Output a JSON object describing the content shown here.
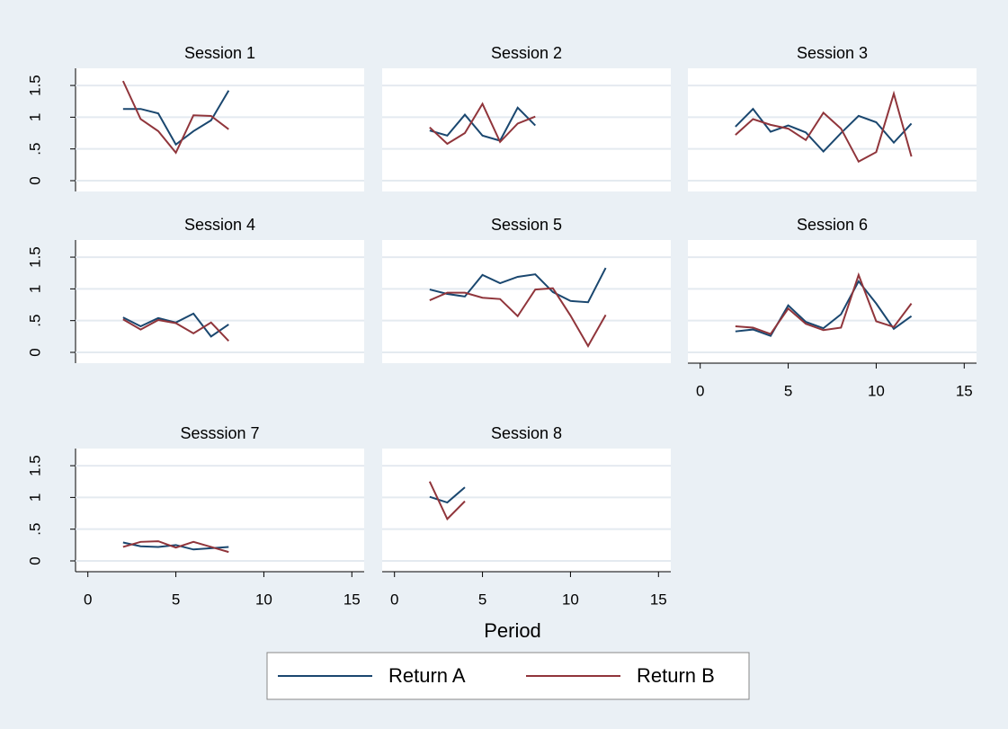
{
  "chart_data": [
    {
      "type": "line",
      "title": "Session 1",
      "x": [
        2,
        3,
        4,
        5,
        6,
        7,
        8
      ],
      "xlim": [
        -0.7,
        15.7
      ],
      "ylim": [
        -0.17,
        1.77
      ],
      "yticks": [
        0,
        {
          "value": 0.5,
          "label": ".5"
        },
        1,
        1.5
      ],
      "grid": true,
      "series": [
        {
          "name": "Return A",
          "color": "#1a476f",
          "values": [
            1.13,
            1.13,
            1.06,
            0.57,
            0.78,
            0.95,
            1.42
          ]
        },
        {
          "name": "Return B",
          "color": "#90353b",
          "values": [
            1.57,
            0.97,
            0.78,
            0.44,
            1.03,
            1.02,
            0.81
          ]
        }
      ]
    },
    {
      "type": "line",
      "title": "Session 2",
      "x": [
        2,
        3,
        4,
        5,
        6,
        7,
        8
      ],
      "xlim": [
        -0.7,
        15.7
      ],
      "ylim": [
        -0.17,
        1.77
      ],
      "grid": true,
      "series": [
        {
          "name": "Return A",
          "color": "#1a476f",
          "values": [
            0.79,
            0.71,
            1.04,
            0.71,
            0.63,
            1.15,
            0.87
          ]
        },
        {
          "name": "Return B",
          "color": "#90353b",
          "values": [
            0.84,
            0.58,
            0.75,
            1.21,
            0.61,
            0.9,
            1.01
          ]
        }
      ]
    },
    {
      "type": "line",
      "title": "Session 3",
      "x": [
        2,
        3,
        4,
        5,
        6,
        7,
        8,
        9,
        10,
        11,
        12
      ],
      "xlim": [
        -0.7,
        15.7
      ],
      "ylim": [
        -0.17,
        1.77
      ],
      "grid": true,
      "series": [
        {
          "name": "Return A",
          "color": "#1a476f",
          "values": [
            0.85,
            1.13,
            0.77,
            0.87,
            0.76,
            0.46,
            0.75,
            1.02,
            0.92,
            0.6,
            0.9
          ]
        },
        {
          "name": "Return B",
          "color": "#90353b",
          "values": [
            0.72,
            0.97,
            0.88,
            0.82,
            0.64,
            1.07,
            0.82,
            0.3,
            0.45,
            1.37,
            0.38
          ]
        }
      ]
    },
    {
      "type": "line",
      "title": "Session 4",
      "x": [
        2,
        3,
        4,
        5,
        6,
        7,
        8
      ],
      "xlim": [
        -0.7,
        15.7
      ],
      "ylim": [
        -0.17,
        1.77
      ],
      "yticks": [
        0,
        {
          "value": 0.5,
          "label": ".5"
        },
        1,
        1.5
      ],
      "grid": true,
      "series": [
        {
          "name": "Return A",
          "color": "#1a476f",
          "values": [
            0.55,
            0.41,
            0.54,
            0.47,
            0.61,
            0.25,
            0.44
          ]
        },
        {
          "name": "Return B",
          "color": "#90353b",
          "values": [
            0.52,
            0.36,
            0.51,
            0.46,
            0.3,
            0.47,
            0.18
          ]
        }
      ]
    },
    {
      "type": "line",
      "title": "Session 5",
      "x": [
        2,
        3,
        4,
        5,
        6,
        7,
        8,
        9,
        10,
        11,
        12
      ],
      "xlim": [
        -0.7,
        15.7
      ],
      "ylim": [
        -0.17,
        1.77
      ],
      "grid": true,
      "series": [
        {
          "name": "Return A",
          "color": "#1a476f",
          "values": [
            0.99,
            0.92,
            0.88,
            1.22,
            1.09,
            1.19,
            1.23,
            0.95,
            0.81,
            0.79,
            1.33
          ]
        },
        {
          "name": "Return B",
          "color": "#90353b",
          "values": [
            0.82,
            0.94,
            0.94,
            0.86,
            0.84,
            0.57,
            0.99,
            1.01,
            0.58,
            0.1,
            0.59
          ]
        }
      ]
    },
    {
      "type": "line",
      "title": "Session 6",
      "x": [
        2,
        3,
        4,
        5,
        6,
        7,
        8,
        9,
        10,
        11,
        12
      ],
      "xlim": [
        -0.7,
        15.7
      ],
      "ylim": [
        -0.17,
        1.77
      ],
      "xticks": [
        0,
        5,
        10,
        15
      ],
      "grid": true,
      "series": [
        {
          "name": "Return A",
          "color": "#1a476f",
          "values": [
            0.33,
            0.36,
            0.26,
            0.74,
            0.48,
            0.38,
            0.6,
            1.12,
            0.77,
            0.37,
            0.57
          ]
        },
        {
          "name": "Return B",
          "color": "#90353b",
          "values": [
            0.41,
            0.39,
            0.29,
            0.69,
            0.45,
            0.35,
            0.39,
            1.22,
            0.49,
            0.4,
            0.77
          ]
        }
      ]
    },
    {
      "type": "line",
      "title": "Sesssion 7",
      "x": [
        2,
        3,
        4,
        5,
        6,
        7,
        8
      ],
      "xlim": [
        -0.7,
        15.7
      ],
      "ylim": [
        -0.17,
        1.77
      ],
      "xticks": [
        0,
        5,
        10,
        15
      ],
      "yticks": [
        0,
        {
          "value": 0.5,
          "label": ".5"
        },
        1,
        1.5
      ],
      "grid": true,
      "series": [
        {
          "name": "Return A",
          "color": "#1a476f",
          "values": [
            0.29,
            0.23,
            0.22,
            0.25,
            0.18,
            0.2,
            0.22
          ]
        },
        {
          "name": "Return B",
          "color": "#90353b",
          "values": [
            0.22,
            0.3,
            0.31,
            0.21,
            0.3,
            0.22,
            0.14
          ]
        }
      ]
    },
    {
      "type": "line",
      "title": "Session 8",
      "x": [
        2,
        3,
        4
      ],
      "xlim": [
        -0.7,
        15.7
      ],
      "ylim": [
        -0.17,
        1.77
      ],
      "xticks": [
        0,
        5,
        10,
        15
      ],
      "grid": true,
      "series": [
        {
          "name": "Return A",
          "color": "#1a476f",
          "values": [
            1.01,
            0.92,
            1.16
          ]
        },
        {
          "name": "Return B",
          "color": "#90353b",
          "values": [
            1.25,
            0.66,
            0.94
          ]
        }
      ]
    }
  ],
  "x_axis_title": "Period"
}
